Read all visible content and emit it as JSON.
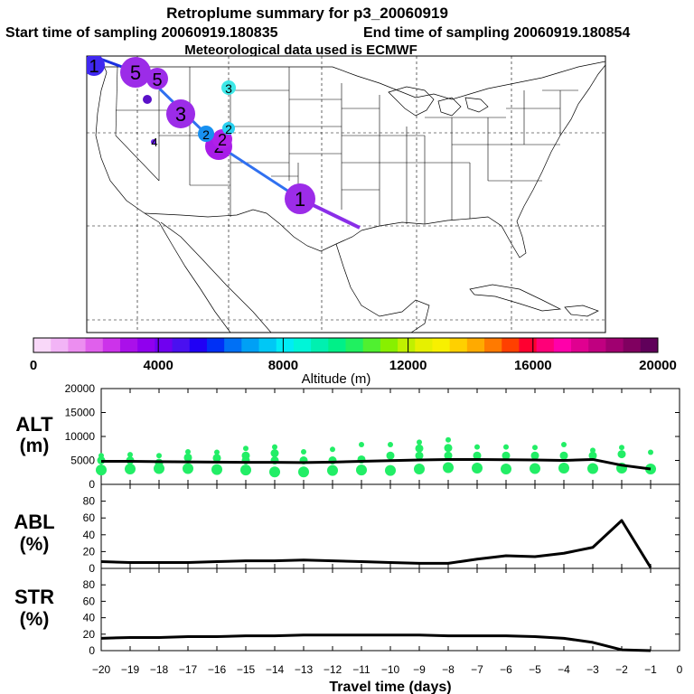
{
  "header": {
    "title": "Retroplume summary for p3_20060919",
    "start_label": "Start time of sampling 20060919.180835",
    "end_label": "End time of sampling 20060919.180854",
    "met_label": "Meteorological data used is ECMWF"
  },
  "colorbar": {
    "label": "Altitude (m)",
    "ticks": [
      "0",
      "4000",
      "8000",
      "12000",
      "16000",
      "20000"
    ],
    "min": 0,
    "max": 20000,
    "colors": [
      "#f9d8f9",
      "#f2b4f6",
      "#ec8ef0",
      "#e060ec",
      "#cc33ea",
      "#aa10ea",
      "#9000ee",
      "#7000f0",
      "#4a10f0",
      "#2000f5",
      "#0030f5",
      "#0070f5",
      "#00a0f5",
      "#00c8f5",
      "#00ecf5",
      "#00f5d8",
      "#00f0b0",
      "#00f088",
      "#20f060",
      "#50f030",
      "#88f000",
      "#c0f000",
      "#e6f000",
      "#f8f000",
      "#ffd000",
      "#ffaa00",
      "#ff7a00",
      "#ff4000",
      "#ff0030",
      "#ff0078",
      "#ff00aa",
      "#e00090",
      "#c00080",
      "#a00070",
      "#800060",
      "#60005a"
    ]
  },
  "map": {
    "plume_points": [
      {
        "label": "1",
        "color": "#9c2ce8"
      },
      {
        "label": "2",
        "color": "#a81ce8"
      },
      {
        "label": "2",
        "color": "#b020e8"
      },
      {
        "label": "2",
        "color": "#1890f0"
      },
      {
        "label": "2",
        "color": "#28d0f0"
      },
      {
        "label": "3",
        "color": "#9c2ce8"
      },
      {
        "label": "3",
        "color": "#3ee8e8"
      },
      {
        "label": "4",
        "color": "#6a1ef0"
      },
      {
        "label": "5",
        "color": "#9c2ce8"
      },
      {
        "label": "5",
        "color": "#9c2ce8"
      },
      {
        "label": "1",
        "color": "#4028f0"
      }
    ],
    "track_colors": [
      "#8a2ee8",
      "#3070f0",
      "#1a30e0"
    ]
  },
  "chart_data": {
    "type": "line",
    "xlabel": "Travel time (days)",
    "x": [
      -20,
      -19,
      -18,
      -17,
      -16,
      -15,
      -14,
      -13,
      -12,
      -11,
      -10,
      -9,
      -8,
      -7,
      -6,
      -5,
      -4,
      -3,
      -2,
      -1
    ],
    "xticks": [
      "−20",
      "−19",
      "−18",
      "−17",
      "−16",
      "−15",
      "−14",
      "−13",
      "−12",
      "−11",
      "−10",
      "−9",
      "−8",
      "−7",
      "−6",
      "−5",
      "−4",
      "−3",
      "−2",
      "−1",
      "0"
    ],
    "xlim": [
      -20,
      0
    ],
    "panels": [
      {
        "name": "ALT",
        "ylabel_line1": "ALT",
        "ylabel_line2": "(m)",
        "ylim": [
          0,
          20000
        ],
        "yticks": [
          "0",
          "5000",
          "10000",
          "15000",
          "20000"
        ],
        "line": [
          4800,
          4800,
          4750,
          4700,
          4650,
          4600,
          4600,
          4550,
          4650,
          4800,
          4950,
          5100,
          5200,
          5200,
          5150,
          5100,
          5000,
          5200,
          4000,
          3200
        ],
        "point_color": "#22ee66",
        "clusters": [
          [
            6000,
            5000,
            3000
          ],
          [
            6200,
            5000,
            3200
          ],
          [
            6000,
            4500,
            3300
          ],
          [
            6800,
            5600,
            3300
          ],
          [
            6700,
            5500,
            3100
          ],
          [
            7500,
            6000,
            5000,
            3000
          ],
          [
            7800,
            6500,
            5000,
            2600
          ],
          [
            6800,
            5000,
            2600
          ],
          [
            7300,
            5000,
            2900
          ],
          [
            8300,
            5200,
            3000
          ],
          [
            8300,
            6000,
            2900
          ],
          [
            8800,
            7500,
            6000,
            3200
          ],
          [
            9300,
            7600,
            6000,
            3500
          ],
          [
            7800,
            6000,
            3400
          ],
          [
            7800,
            6000,
            3200
          ],
          [
            7700,
            6000,
            3300
          ],
          [
            8300,
            6000,
            3400
          ],
          [
            7100,
            6000,
            3300
          ],
          [
            7700,
            6300,
            3400
          ],
          [
            6700,
            3200
          ]
        ]
      },
      {
        "name": "ABL",
        "ylabel_line1": "ABL",
        "ylabel_line2": "(%)",
        "ylim": [
          0,
          100
        ],
        "yticks": [
          "0",
          "20",
          "40",
          "60",
          "80"
        ],
        "line": [
          8,
          7,
          7,
          7,
          8,
          9,
          9,
          10,
          9,
          8,
          7,
          6,
          6,
          11,
          15,
          14,
          18,
          25,
          57,
          1
        ]
      },
      {
        "name": "STR",
        "ylabel_line1": "STR",
        "ylabel_line2": "(%)",
        "ylim": [
          0,
          100
        ],
        "yticks": [
          "0",
          "20",
          "40",
          "60",
          "80"
        ],
        "line": [
          15,
          16,
          16,
          17,
          17,
          18,
          18,
          19,
          19,
          19,
          19,
          19,
          18,
          18,
          18,
          17,
          15,
          10,
          1,
          0
        ]
      }
    ]
  }
}
